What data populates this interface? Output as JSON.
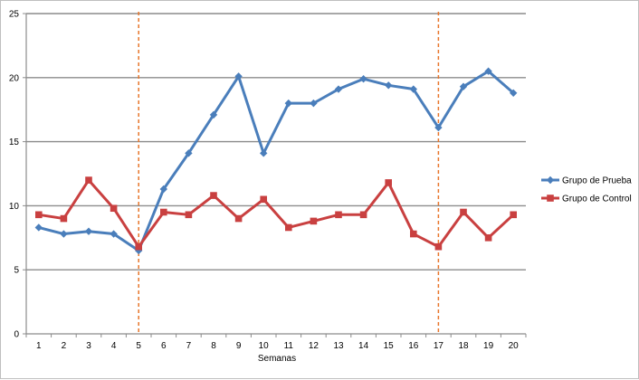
{
  "chart_data": {
    "type": "line",
    "title": "",
    "xlabel": "Semanas",
    "ylabel": "",
    "ylim": [
      0,
      25
    ],
    "yticks": [
      0,
      5,
      10,
      15,
      20,
      25
    ],
    "categories": [
      "1",
      "2",
      "3",
      "4",
      "5",
      "6",
      "7",
      "8",
      "9",
      "10",
      "11",
      "12",
      "13",
      "14",
      "15",
      "16",
      "17",
      "18",
      "19",
      "20"
    ],
    "grid": "horizontal",
    "legend_position": "right",
    "phase_markers": [
      "5",
      "17"
    ],
    "phase_marker_color": "#e8762b",
    "series": [
      {
        "name": "Grupo de Prueba",
        "color": "#4a7ebb",
        "marker": "diamond",
        "values": [
          8.3,
          7.8,
          8.0,
          7.8,
          6.5,
          11.3,
          14.1,
          17.1,
          20.1,
          14.1,
          18.0,
          18.0,
          19.1,
          19.9,
          19.4,
          19.1,
          16.1,
          19.3,
          20.5,
          18.8
        ]
      },
      {
        "name": "Grupo de Control",
        "color": "#c94040",
        "marker": "square",
        "values": [
          9.3,
          9.0,
          12.0,
          9.8,
          6.8,
          9.5,
          9.3,
          10.8,
          9.0,
          10.5,
          8.3,
          8.8,
          9.3,
          9.3,
          11.8,
          7.8,
          6.8,
          9.5,
          7.5,
          9.3
        ]
      }
    ]
  }
}
